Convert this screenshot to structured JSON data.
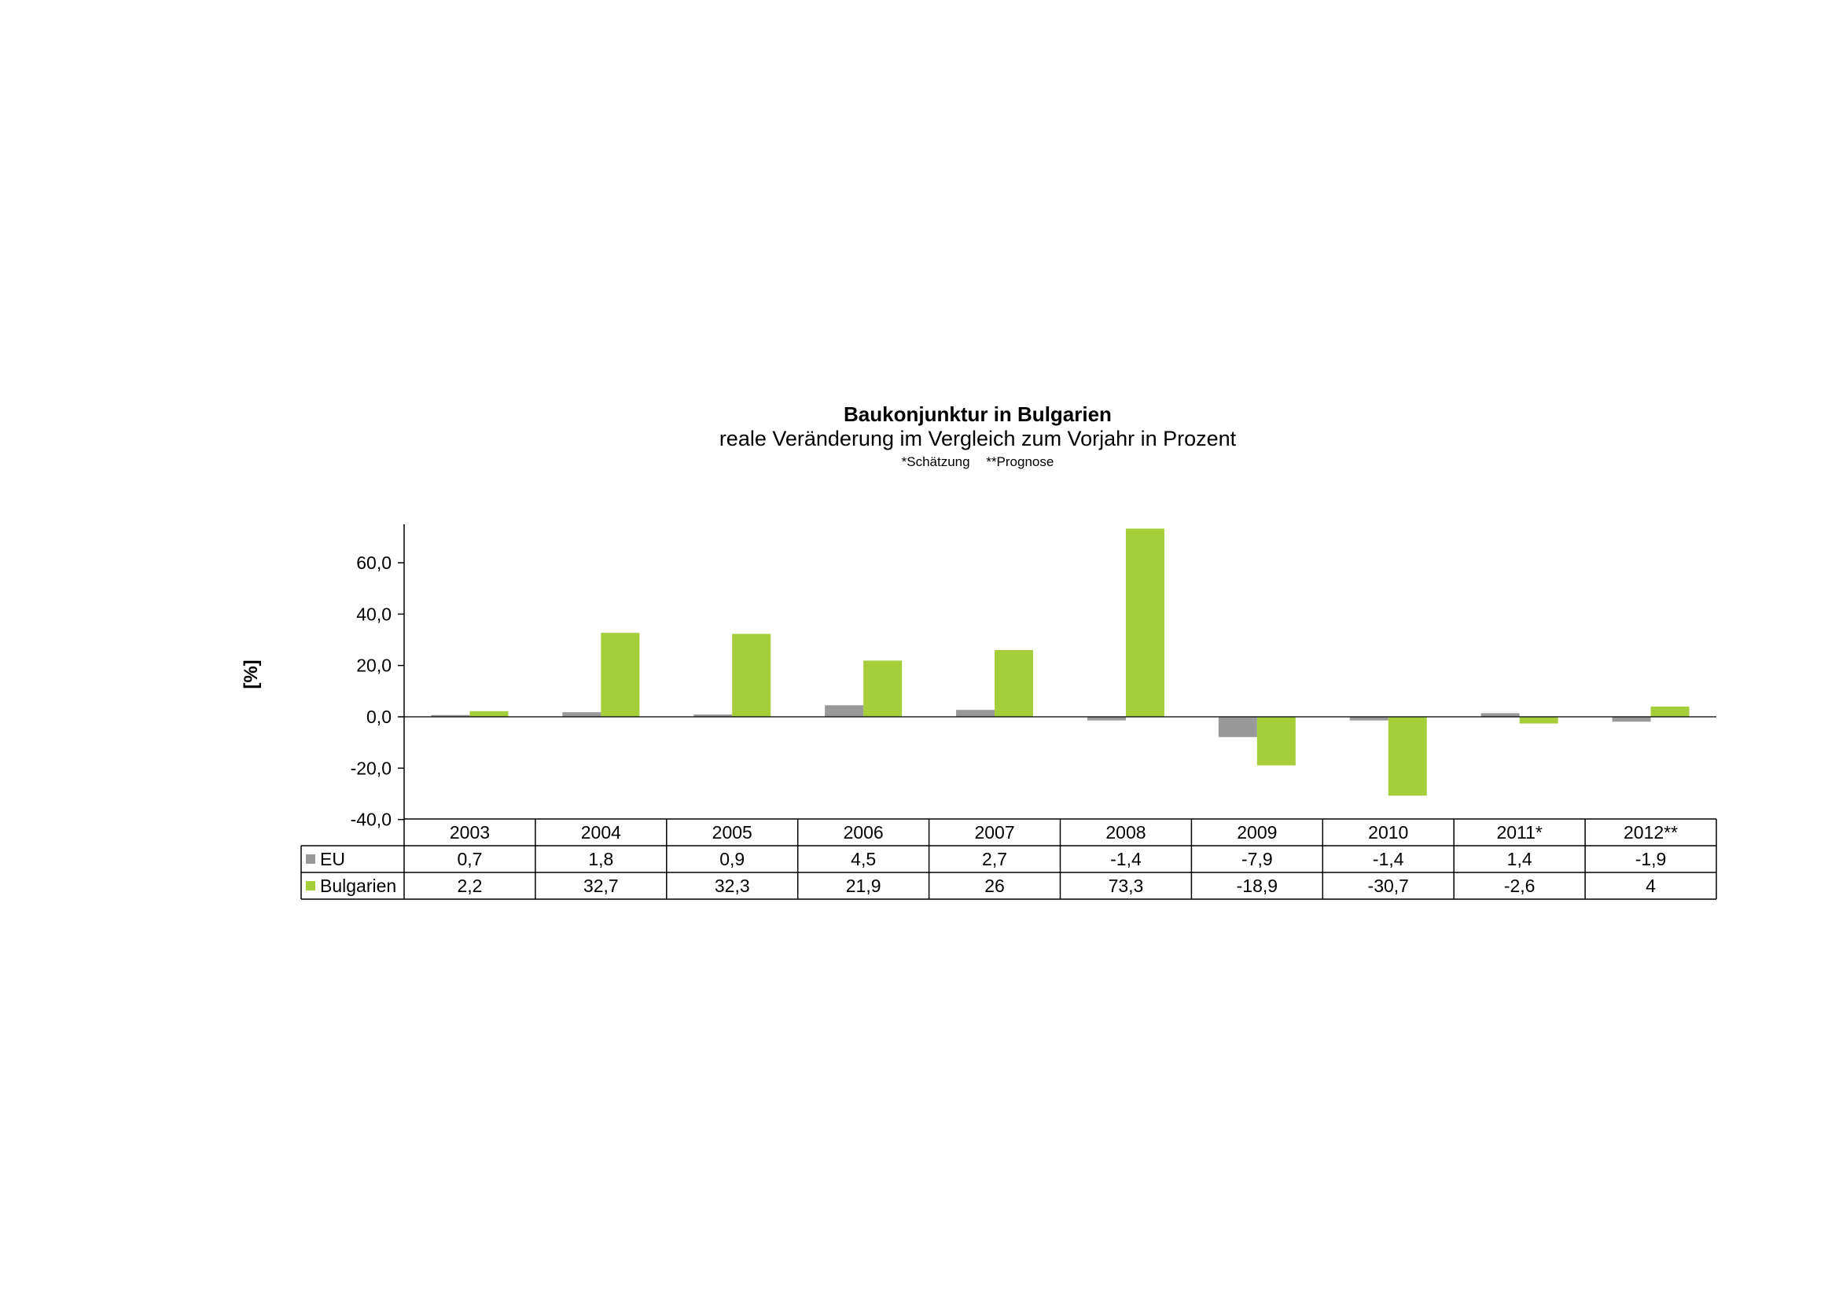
{
  "chart_data": {
    "type": "bar",
    "title": "Baukonjunktur in Bulgarien",
    "subtitle": "reale Veränderung im Vergleich zum Vorjahr in Prozent",
    "notes": [
      "*Schätzung",
      "**Prognose"
    ],
    "ylabel": "[%]",
    "xlabel": "",
    "ylim": [
      -40,
      70
    ],
    "yticks": [
      "60,0",
      "40,0",
      "20,0",
      "0,0",
      "-20,0",
      "-40,0"
    ],
    "ytick_values": [
      60,
      40,
      20,
      0,
      -20,
      -40
    ],
    "categories": [
      "2003",
      "2004",
      "2005",
      "2006",
      "2007",
      "2008",
      "2009",
      "2010",
      "2011*",
      "2012**"
    ],
    "series": [
      {
        "name": "EU",
        "color": "#999999",
        "values": [
          0.7,
          1.8,
          0.9,
          4.5,
          2.7,
          -1.4,
          -7.9,
          -1.4,
          1.4,
          -1.9
        ],
        "labels": [
          "0,7",
          "1,8",
          "0,9",
          "4,5",
          "2,7",
          "-1,4",
          "-7,9",
          "-1,4",
          "1,4",
          "-1,9"
        ]
      },
      {
        "name": "Bulgarien",
        "color": "#a6cd3a",
        "values": [
          2.2,
          32.7,
          32.3,
          21.9,
          26,
          73.3,
          -18.9,
          -30.7,
          -2.6,
          4
        ],
        "labels": [
          "2,2",
          "32,7",
          "32,3",
          "21,9",
          "26",
          "73,3",
          "-18,9",
          "-30,7",
          "-2,6",
          "4"
        ]
      }
    ],
    "grid": false,
    "legend": "data-table"
  }
}
